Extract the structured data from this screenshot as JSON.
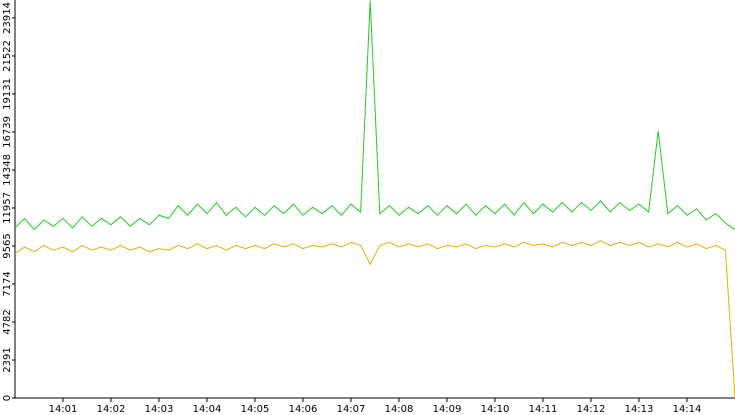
{
  "chart_data": {
    "type": "line",
    "x": [
      840,
      840.2,
      840.4,
      840.6,
      840.8,
      841,
      841.2,
      841.4,
      841.6,
      841.8,
      842,
      842.2,
      842.4,
      842.6,
      842.8,
      843,
      843.2,
      843.4,
      843.6,
      843.8,
      844,
      844.2,
      844.4,
      844.6,
      844.8,
      845,
      845.2,
      845.4,
      845.6,
      845.8,
      846,
      846.2,
      846.4,
      846.6,
      846.8,
      847,
      847.2,
      847.4,
      847.6,
      847.8,
      848,
      848.2,
      848.4,
      848.6,
      848.8,
      849,
      849.2,
      849.4,
      849.6,
      849.8,
      850,
      850.2,
      850.4,
      850.6,
      850.8,
      851,
      851.2,
      851.4,
      851.6,
      851.8,
      852,
      852.2,
      852.4,
      852.6,
      852.8,
      853,
      853.2,
      853.4,
      853.6,
      853.8,
      854,
      854.2,
      854.4,
      854.6,
      854.8,
      855
    ],
    "series": [
      {
        "color": "#22cc22",
        "values": [
          10700,
          11300,
          10600,
          11200,
          10800,
          11300,
          10700,
          11400,
          10800,
          11300,
          10900,
          11400,
          10800,
          11300,
          10900,
          11500,
          11300,
          12100,
          11500,
          12200,
          11600,
          12300,
          11500,
          12000,
          11400,
          12000,
          11500,
          12100,
          11600,
          12200,
          11500,
          12000,
          11600,
          12100,
          11500,
          12200,
          11700,
          25000,
          11600,
          12100,
          11500,
          12000,
          11600,
          12100,
          11500,
          12100,
          11600,
          12200,
          11500,
          12100,
          11600,
          12200,
          11500,
          12300,
          11600,
          12200,
          11700,
          12300,
          11700,
          12300,
          11800,
          12400,
          11700,
          12300,
          11800,
          12200,
          11700,
          16800,
          11600,
          12100,
          11500,
          11900,
          11200,
          11600,
          11000,
          10600
        ]
      },
      {
        "color": "#e6b000",
        "values": [
          9100,
          9500,
          9200,
          9600,
          9300,
          9500,
          9200,
          9600,
          9300,
          9500,
          9300,
          9600,
          9300,
          9500,
          9200,
          9400,
          9300,
          9600,
          9400,
          9700,
          9400,
          9600,
          9300,
          9600,
          9400,
          9600,
          9400,
          9700,
          9500,
          9700,
          9400,
          9600,
          9500,
          9700,
          9500,
          9800,
          9600,
          8400,
          9600,
          9800,
          9500,
          9700,
          9500,
          9700,
          9400,
          9600,
          9500,
          9700,
          9400,
          9600,
          9500,
          9700,
          9500,
          9800,
          9600,
          9700,
          9500,
          9800,
          9600,
          9800,
          9600,
          9900,
          9600,
          9800,
          9600,
          9800,
          9500,
          9700,
          9500,
          9800,
          9500,
          9700,
          9400,
          9600,
          9300,
          0
        ]
      }
    ],
    "xlim": [
      840,
      855
    ],
    "ylim": [
      0,
      25042
    ],
    "xticks": [
      {
        "value": 841,
        "label": "14:01"
      },
      {
        "value": 842,
        "label": "14:02"
      },
      {
        "value": 843,
        "label": "14:03"
      },
      {
        "value": 844,
        "label": "14:04"
      },
      {
        "value": 845,
        "label": "14:05"
      },
      {
        "value": 846,
        "label": "14:06"
      },
      {
        "value": 847,
        "label": "14:07"
      },
      {
        "value": 848,
        "label": "14:08"
      },
      {
        "value": 849,
        "label": "14:09"
      },
      {
        "value": 850,
        "label": "14:10"
      },
      {
        "value": 851,
        "label": "14:11"
      },
      {
        "value": 852,
        "label": "14:12"
      },
      {
        "value": 853,
        "label": "14:13"
      },
      {
        "value": 854,
        "label": "14:14"
      }
    ],
    "yticks": [
      0,
      2391,
      4782,
      7174,
      9565,
      11957,
      14348,
      16739,
      19131,
      21522,
      23914
    ]
  }
}
